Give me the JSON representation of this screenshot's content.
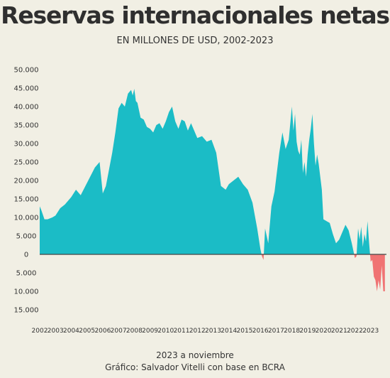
{
  "chart_data": {
    "type": "area",
    "title": "Reservas internacionales netas",
    "subtitle": "EN MILLONES DE USD, 2002-2023",
    "note": "2023 a noviembre",
    "source": "Gráfico: Salvador Vitelli con base en BCRA",
    "xlabel": "",
    "ylabel": "",
    "ylim": [
      -15000,
      50000
    ],
    "xlim": [
      2002,
      2024
    ],
    "grid": false,
    "y_ticks": [
      {
        "value": 50000,
        "label": "50.000"
      },
      {
        "value": 45000,
        "label": "45.000"
      },
      {
        "value": 40000,
        "label": "40.000"
      },
      {
        "value": 35000,
        "label": "35.000"
      },
      {
        "value": 30000,
        "label": "30.000"
      },
      {
        "value": 25000,
        "label": "25.000"
      },
      {
        "value": 20000,
        "label": "20.000"
      },
      {
        "value": 15000,
        "label": "15.000"
      },
      {
        "value": 10000,
        "label": "10.000"
      },
      {
        "value": 5000,
        "label": "5.000"
      },
      {
        "value": 0,
        "label": "0"
      },
      {
        "value": -5000,
        "label": "5.000"
      },
      {
        "value": -10000,
        "label": "10.000"
      },
      {
        "value": -15000,
        "label": "15.000"
      }
    ],
    "x_ticks": [
      "2002",
      "2003",
      "2004",
      "2005",
      "2006",
      "2007",
      "2008",
      "2009",
      "2010",
      "2011",
      "2012",
      "2013",
      "2014",
      "2015",
      "2016",
      "2017",
      "2018",
      "2019",
      "2020",
      "2021",
      "2022",
      "2023"
    ],
    "positive_color": "#1bbcc6",
    "negative_color": "#f07373",
    "axis_color": "#444444",
    "series": [
      {
        "x": [
          2002.0,
          2002.1,
          2002.3,
          2002.5,
          2002.8,
          2003.0,
          2003.3,
          2003.6,
          2004.0,
          2004.3,
          2004.6,
          2004.9,
          2005.2,
          2005.5,
          2005.8,
          2006.0,
          2006.2,
          2006.4,
          2006.6,
          2006.8,
          2007.0,
          2007.2,
          2007.4,
          2007.6,
          2007.8,
          2007.9,
          2008.0,
          2008.1,
          2008.2,
          2008.4,
          2008.6,
          2008.8,
          2009.0,
          2009.2,
          2009.4,
          2009.6,
          2009.8,
          2010.0,
          2010.2,
          2010.4,
          2010.6,
          2010.8,
          2011.0,
          2011.2,
          2011.4,
          2011.6,
          2011.8,
          2012.0,
          2012.3,
          2012.6,
          2012.9,
          2013.2,
          2013.5,
          2013.8,
          2014.0,
          2014.3,
          2014.6,
          2014.9,
          2015.2,
          2015.5,
          2015.8,
          2016.0,
          2016.1,
          2016.2,
          2016.3,
          2016.5,
          2016.7,
          2016.9,
          2017.0,
          2017.2,
          2017.4,
          2017.6,
          2017.8,
          2018.0,
          2018.1,
          2018.2,
          2018.3,
          2018.4,
          2018.5,
          2018.6,
          2018.7,
          2018.8,
          2018.9,
          2019.0,
          2019.1,
          2019.2,
          2019.3,
          2019.4,
          2019.5,
          2019.6,
          2019.7,
          2019.8,
          2019.9,
          2020.0,
          2020.2,
          2020.4,
          2020.6,
          2020.8,
          2021.0,
          2021.2,
          2021.4,
          2021.6,
          2021.8,
          2022.0,
          2022.1,
          2022.2,
          2022.3,
          2022.4,
          2022.5,
          2022.6,
          2022.7,
          2022.8,
          2022.9,
          2023.0,
          2023.1,
          2023.2,
          2023.3,
          2023.4,
          2023.5,
          2023.6,
          2023.7,
          2023.8,
          2023.9
        ],
        "y": [
          13000,
          12000,
          9500,
          9500,
          10000,
          10500,
          12500,
          13500,
          15500,
          17500,
          16000,
          18500,
          21000,
          23500,
          25000,
          16500,
          18500,
          23000,
          27500,
          33000,
          39500,
          41000,
          40000,
          43500,
          44500,
          43000,
          44800,
          41500,
          41000,
          37000,
          36500,
          34500,
          34000,
          33000,
          35000,
          35500,
          34000,
          36000,
          38500,
          40000,
          36000,
          34000,
          36500,
          36000,
          33500,
          35500,
          33500,
          31500,
          32000,
          30500,
          31000,
          27500,
          18500,
          17500,
          19000,
          20000,
          21000,
          19000,
          17500,
          14000,
          7000,
          1500,
          -500,
          -1500,
          7000,
          3000,
          13000,
          17000,
          20500,
          27500,
          33000,
          28500,
          31000,
          40000,
          33500,
          38000,
          30500,
          28000,
          27000,
          31000,
          22000,
          25000,
          21000,
          27000,
          31000,
          34000,
          38000,
          30000,
          24000,
          27000,
          24500,
          21000,
          17500,
          9500,
          9000,
          8500,
          5500,
          3000,
          4000,
          6000,
          8000,
          6500,
          3000,
          -1000,
          -500,
          7000,
          4000,
          7500,
          2000,
          5500,
          3500,
          9000,
          3000,
          -2000,
          -1500,
          -6000,
          -7000,
          -10000,
          -7000,
          -9500,
          -3000,
          -10000,
          -10000
        ]
      }
    ]
  }
}
